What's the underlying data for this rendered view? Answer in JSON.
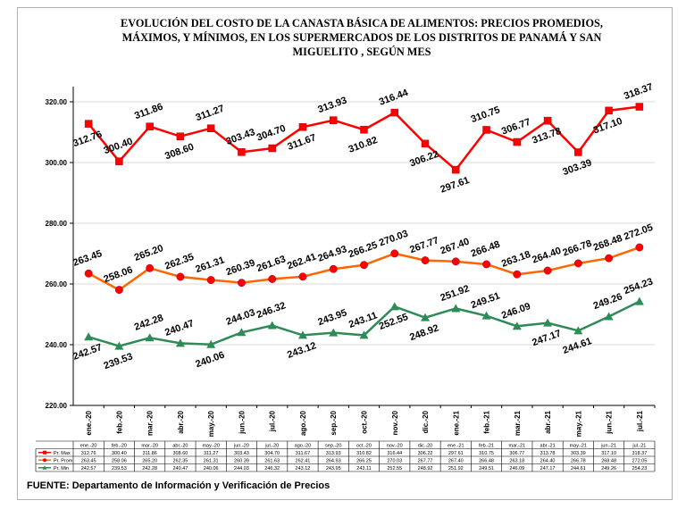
{
  "chart_data": {
    "type": "line",
    "title_lines": [
      "EVOLUCIÓN DEL COSTO DE LA CANASTA BÁSICA DE ALIMENTOS: PRECIOS PROMEDIOS,",
      "MÁXIMOS,  Y MÍNIMOS, EN LOS SUPERMERCADOS DE LOS DISTRITOS DE PANAMÁ Y SAN",
      "MIGUELITO ,  SEGÚN MES"
    ],
    "categories": [
      "ene.-20",
      "feb.-20",
      "mar.-20",
      "abr.-20",
      "may.-20",
      "jun.-20",
      "jul.-20",
      "ago.-20",
      "sep.-20",
      "oct.-20",
      "nov.-20",
      "dic.-20",
      "ene.-21",
      "feb.-21",
      "mar.-21",
      "abr.-21",
      "may.-21",
      "jun.-21",
      "jul.-21"
    ],
    "table_categories": [
      "ene.-20",
      "feb.-20",
      "mar.-20",
      "abr.-20",
      "may.-20",
      "jun.-20",
      "jul.-20",
      "ago.-20",
      "sep.-20",
      "oct.-20",
      "nov.-20",
      "dic.-20",
      "ene.-21",
      "feb.-21",
      "mar.-21",
      "abr.-21",
      "may.-21",
      "jun.-21",
      "jul.-21"
    ],
    "y_ticks": [
      "220.00",
      "240.00",
      "260.00",
      "280.00",
      "300.00",
      "320.00"
    ],
    "ylim": [
      220,
      325
    ],
    "grid": true,
    "series": [
      {
        "name": "Pr. Max",
        "color": "#ff0000",
        "marker": "square",
        "marker_color": "#ff0000",
        "values": [
          312.76,
          300.4,
          311.86,
          308.6,
          311.27,
          303.43,
          304.7,
          311.67,
          313.93,
          310.82,
          316.44,
          306.22,
          297.61,
          310.75,
          306.77,
          313.78,
          303.39,
          317.1,
          318.37
        ],
        "labels": [
          "312.76",
          "300.40",
          "311.86",
          "308.60",
          "311.27",
          "303.43",
          "304.70",
          "311.67",
          "313.93",
          "310.82",
          "316.44",
          "306.22",
          "297.61",
          "310.75",
          "306.77",
          "313.78",
          "303.39",
          "317.10",
          "318.37"
        ]
      },
      {
        "name": "Pr. Prom",
        "color": "#ff6600",
        "marker": "circle",
        "marker_color": "#ff0000",
        "values": [
          263.45,
          258.06,
          265.2,
          262.35,
          261.31,
          260.39,
          261.63,
          262.41,
          264.93,
          266.25,
          270.03,
          267.77,
          267.4,
          266.48,
          263.18,
          264.4,
          266.78,
          268.48,
          272.05
        ],
        "labels": [
          "263.45",
          "258.06",
          "265.20",
          "262.35",
          "261.31",
          "260.39",
          "261.63",
          "262.41",
          "264.93",
          "266.25",
          "270.03",
          "267.77",
          "267.40",
          "266.48",
          "263.18",
          "264.40",
          "266.78",
          "268.48",
          "272.05"
        ]
      },
      {
        "name": "Pr. Min",
        "color": "#2e8b57",
        "marker": "triangle",
        "marker_color": "#2e8b57",
        "values": [
          242.57,
          239.53,
          242.28,
          240.47,
          240.06,
          244.03,
          246.32,
          243.12,
          243.95,
          243.11,
          252.55,
          248.92,
          251.92,
          249.51,
          246.09,
          247.17,
          244.61,
          249.26,
          254.23
        ],
        "labels": [
          "242.57",
          "239.53",
          "242.28",
          "240.47",
          "240.06",
          "244.03",
          "246.32",
          "243.12",
          "243.95",
          "243.11",
          "252.55",
          "248.92",
          "251.92",
          "249.51",
          "246.09",
          "247.17",
          "244.61",
          "249.26",
          "254.23"
        ]
      }
    ]
  },
  "source_text": "FUENTE: Departamento de Información y Verificación de Precios"
}
